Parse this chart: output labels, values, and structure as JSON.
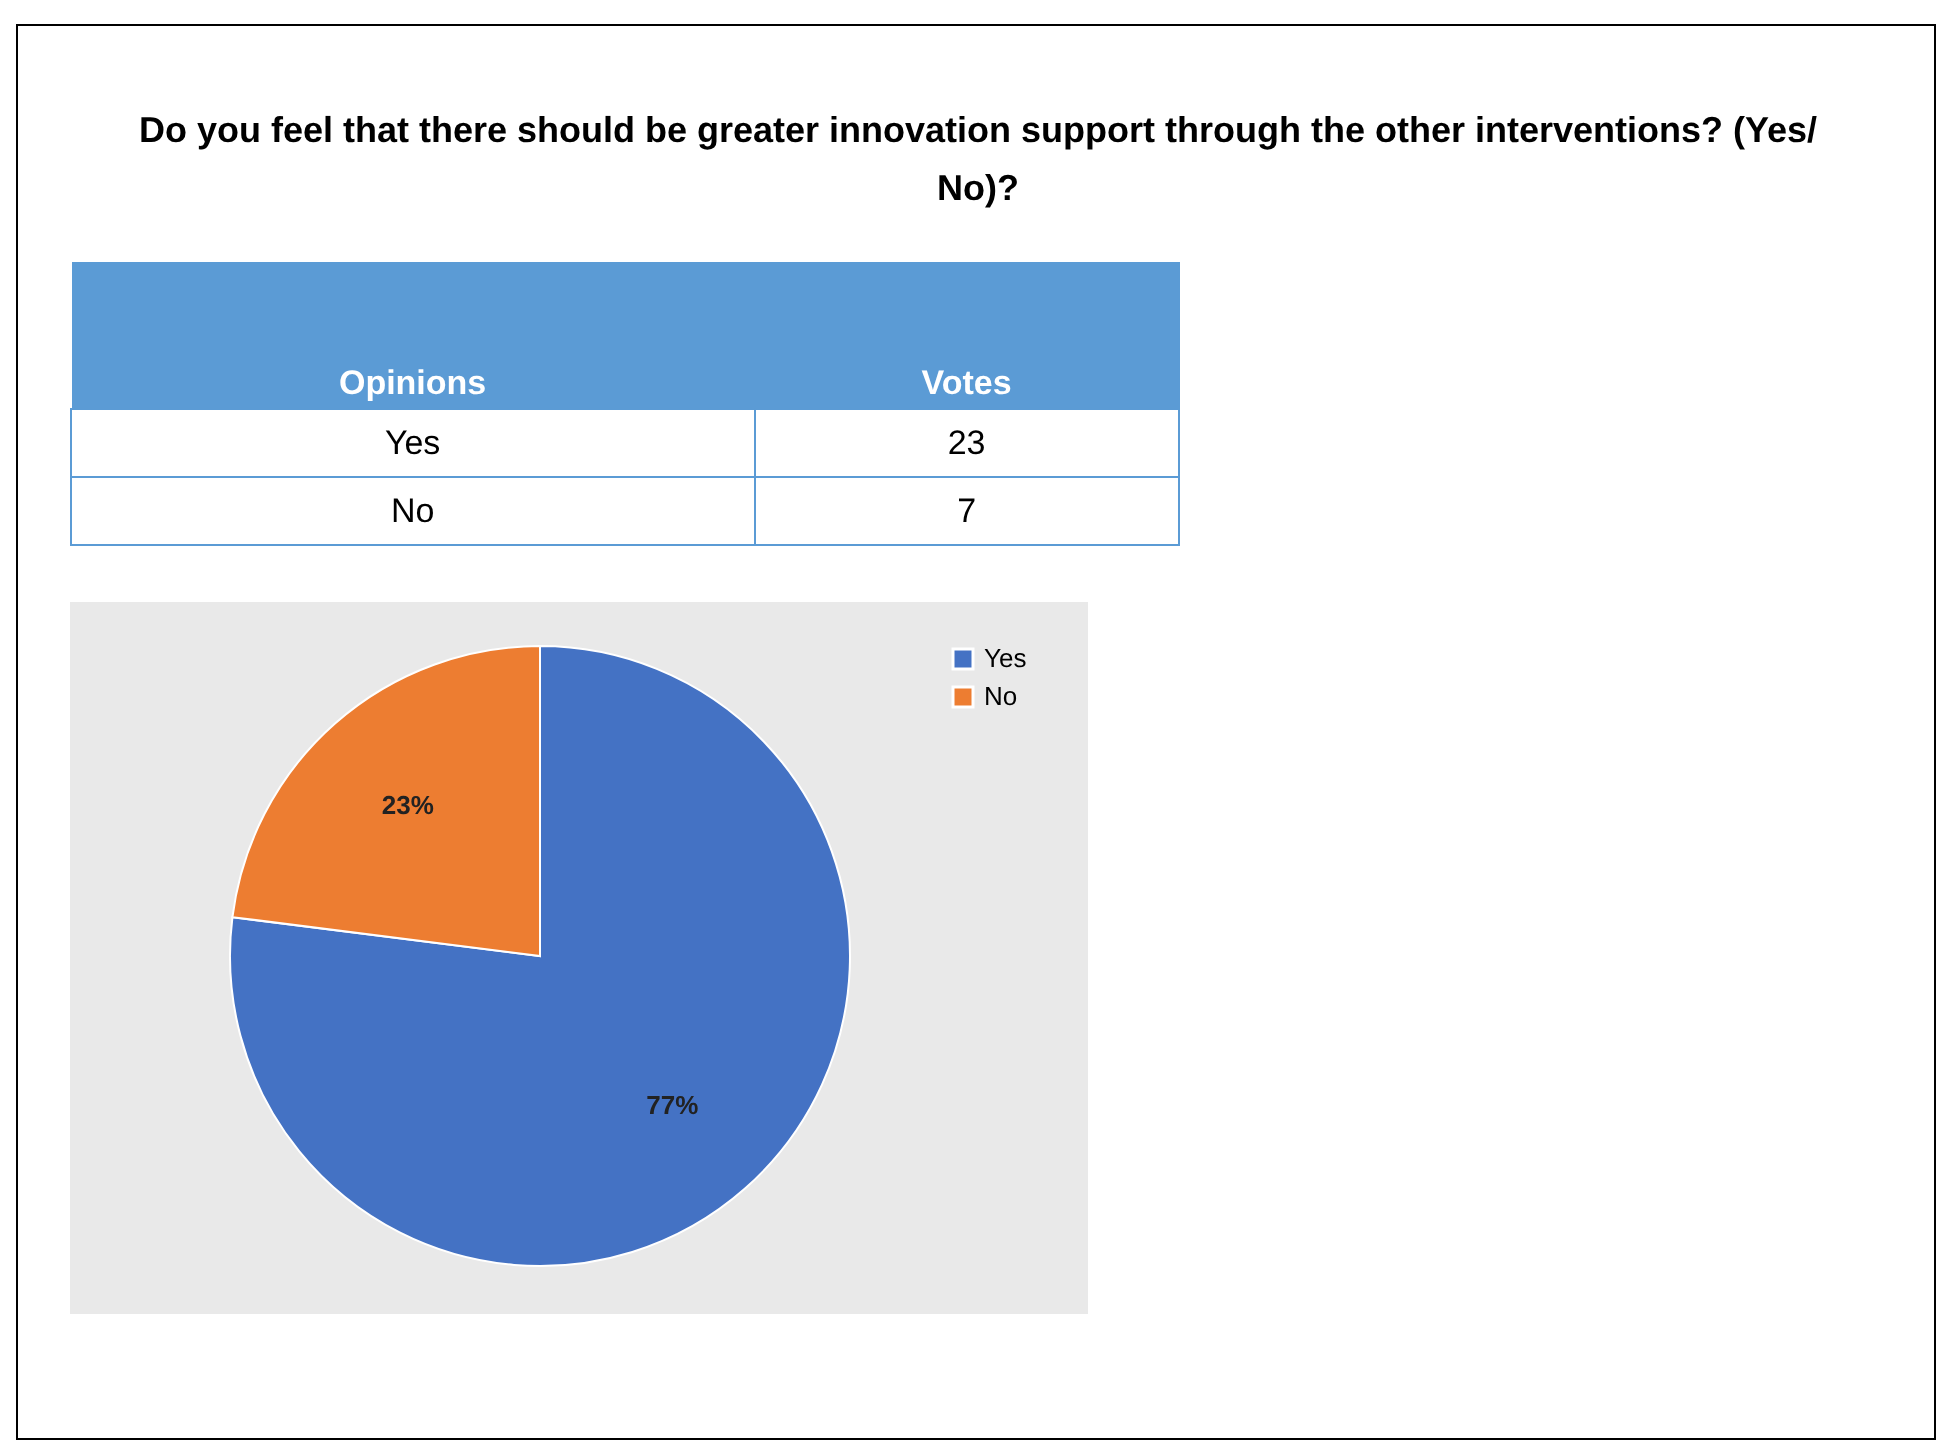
{
  "chart_data": [
    {
      "type": "other",
      "title": "Do you feel that there should be greater innovation support through the other interventions? (Yes/ No)?",
      "xlabel": "Opinions",
      "ylabel": "Votes",
      "categories": [
        "Yes",
        "No"
      ],
      "values": [
        23,
        7
      ],
      "data_labels": true
    },
    {
      "type": "pie",
      "categories": [
        "Yes",
        "No"
      ],
      "values": [
        77,
        23
      ],
      "colors": [
        "#4472c4",
        "#ed7d31"
      ],
      "value_labels": [
        "77%",
        "23%"
      ],
      "legend": "right"
    }
  ]
}
